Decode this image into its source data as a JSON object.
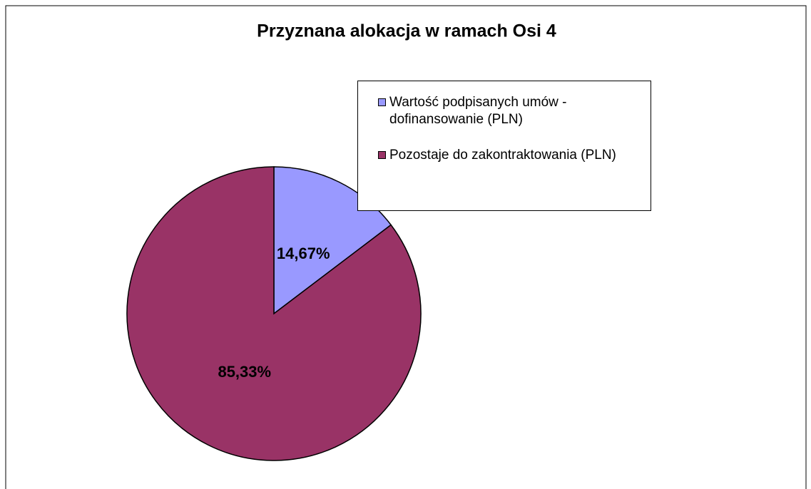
{
  "chart_data": {
    "type": "pie",
    "title": "Przyznana alokacja w ramach Osi 4",
    "categories": [
      "Wartość podpisanych umów - dofinansowanie (PLN)",
      "Pozostaje do zakontraktowania (PLN)"
    ],
    "values": [
      14.67,
      85.33
    ],
    "value_labels": [
      "14,67%",
      "85,33%"
    ],
    "colors": [
      "#9999ff",
      "#993366"
    ],
    "legend": "upper right"
  }
}
